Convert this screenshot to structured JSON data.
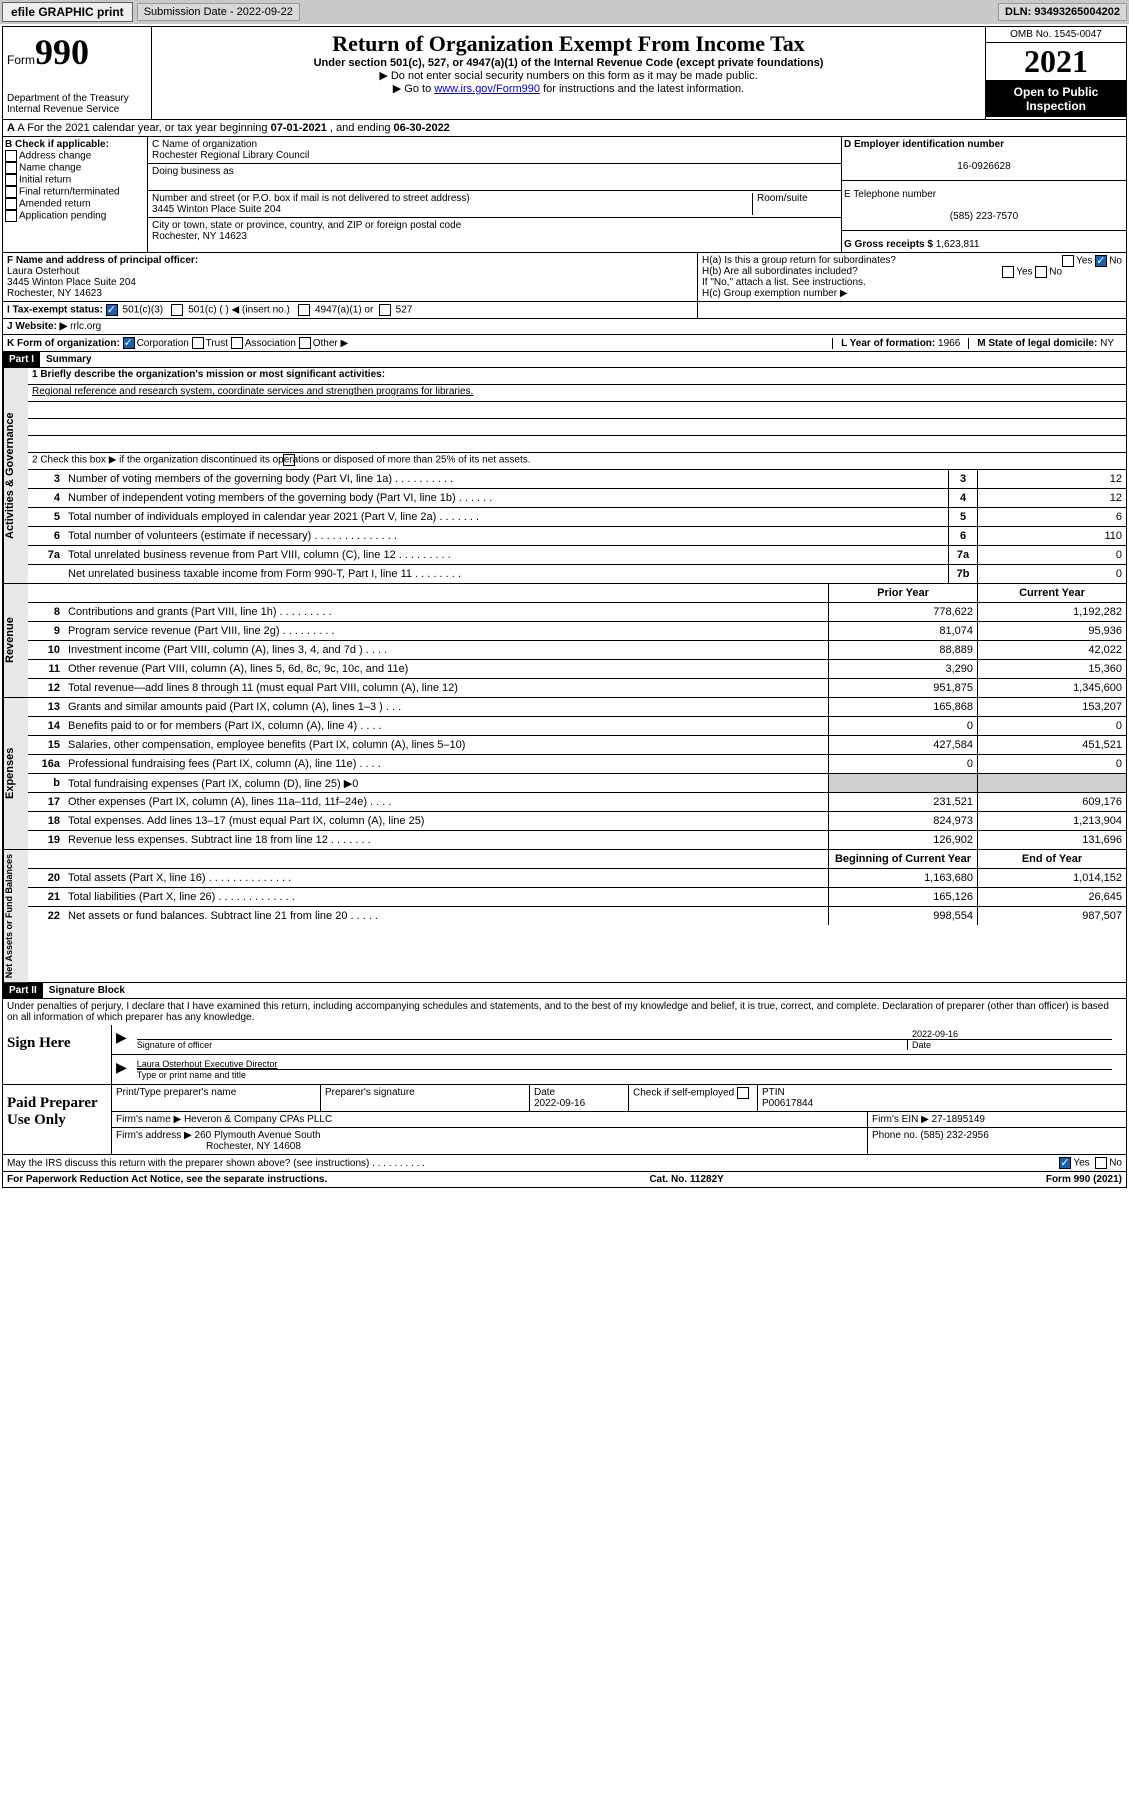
{
  "topbar": {
    "efile": "efile GRAPHIC print",
    "sub": "Submission Date - 2022-09-22",
    "dln": "DLN: 93493265004202"
  },
  "header": {
    "form_label": "Form",
    "form_num": "990",
    "dept": "Department of the Treasury\nInternal Revenue Service",
    "title": "Return of Organization Exempt From Income Tax",
    "sub1": "Under section 501(c), 527, or 4947(a)(1) of the Internal Revenue Code (except private foundations)",
    "sub2a": "▶ Do not enter social security numbers on this form as it may be made public.",
    "sub2b": "▶ Go to ",
    "sub2b_link": "www.irs.gov/Form990",
    "sub2b_after": " for instructions and the latest information.",
    "omb": "OMB No. 1545-0047",
    "year": "2021",
    "inspect": "Open to Public Inspection"
  },
  "rowA": {
    "text": "A For the 2021 calendar year, or tax year beginning ",
    "begin": "07-01-2021",
    "mid": " , and ending ",
    "end": "06-30-2022"
  },
  "colB": {
    "hdr": "B Check if applicable:",
    "items": [
      "Address change",
      "Name change",
      "Initial return",
      "Final return/terminated",
      "Amended return",
      "Application pending"
    ]
  },
  "colC": {
    "name_lbl": "C Name of organization",
    "name": "Rochester Regional Library Council",
    "dba_lbl": "Doing business as",
    "dba": "",
    "addr_lbl": "Number and street (or P.O. box if mail is not delivered to street address)",
    "room_lbl": "Room/suite",
    "addr": "3445 Winton Place Suite 204",
    "city_lbl": "City or town, state or province, country, and ZIP or foreign postal code",
    "city": "Rochester, NY  14623"
  },
  "colD": {
    "ein_lbl": "D Employer identification number",
    "ein": "16-0926628",
    "tel_lbl": "E Telephone number",
    "tel": "(585) 223-7570",
    "gross_lbl": "G Gross receipts $ ",
    "gross": "1,623,811"
  },
  "rowF": {
    "lbl": "F  Name and address of principal officer:",
    "name": "Laura Osterhout",
    "addr": "3445 Winton Place Suite 204\nRochester, NY  14623",
    "ha": "H(a)  Is this a group return for subordinates?",
    "ha_yes": "Yes",
    "ha_no": "No",
    "hb": "H(b)  Are all subordinates included?",
    "hb_yes": "Yes",
    "hb_no": "No",
    "hb_note": "If \"No,\" attach a list. See instructions.",
    "hc": "H(c)  Group exemption number ▶"
  },
  "rowI": {
    "lbl": "I  Tax-exempt status:",
    "o1": "501(c)(3)",
    "o2": "501(c) (   ) ◀ (insert no.)",
    "o3": "4947(a)(1) or",
    "o4": "527"
  },
  "rowJ": {
    "lbl": "J  Website: ▶",
    "val": "rrlc.org"
  },
  "rowK": {
    "lbl": "K Form of organization:",
    "o1": "Corporation",
    "o2": "Trust",
    "o3": "Association",
    "o4": "Other ▶",
    "l": "L Year of formation: ",
    "lval": "1966",
    "m": "M State of legal domicile: ",
    "mval": "NY"
  },
  "partI": {
    "hdr": "Part I",
    "title": "Summary"
  },
  "gov": {
    "label": "Activities & Governance",
    "l1": "1  Briefly describe the organization's mission or most significant activities:",
    "mission": "Regional reference and research system, coordinate services and strengthen programs for libraries.",
    "l2": "2  Check this box ▶       if the organization discontinued its operations or disposed of more than 25% of its net assets.",
    "rows": [
      {
        "n": "3",
        "t": "Number of voting members of the governing body (Part VI, line 1a)  .    .    .    .    .    .    .    .    .    .",
        "b": "3",
        "v": "12"
      },
      {
        "n": "4",
        "t": "Number of independent voting members of the governing body (Part VI, line 1b)  .    .    .    .    .    .",
        "b": "4",
        "v": "12"
      },
      {
        "n": "5",
        "t": "Total number of individuals employed in calendar year 2021 (Part V, line 2a)  .    .    .    .    .    .    .",
        "b": "5",
        "v": "6"
      },
      {
        "n": "6",
        "t": "Total number of volunteers (estimate if necessary)  .    .    .    .    .    .    .    .    .    .    .    .    .    .",
        "b": "6",
        "v": "110"
      },
      {
        "n": "7a",
        "t": "Total unrelated business revenue from Part VIII, column (C), line 12  .    .    .    .    .    .    .    .    .",
        "b": "7a",
        "v": "0"
      },
      {
        "n": "",
        "t": "Net unrelated business taxable income from Form 990-T, Part I, line 11  .    .    .    .    .    .    .    .",
        "b": "7b",
        "v": "0"
      }
    ]
  },
  "revenue": {
    "label": "Revenue",
    "hdr_prior": "Prior Year",
    "hdr_curr": "Current Year",
    "rows": [
      {
        "n": "8",
        "t": "Contributions and grants (Part VIII, line 1h)  .    .    .    .    .    .    .    .    .",
        "p": "778,622",
        "c": "1,192,282"
      },
      {
        "n": "9",
        "t": "Program service revenue (Part VIII, line 2g)  .    .    .    .    .    .    .    .    .",
        "p": "81,074",
        "c": "95,936"
      },
      {
        "n": "10",
        "t": "Investment income (Part VIII, column (A), lines 3, 4, and 7d )  .    .    .    .",
        "p": "88,889",
        "c": "42,022"
      },
      {
        "n": "11",
        "t": "Other revenue (Part VIII, column (A), lines 5, 6d, 8c, 9c, 10c, and 11e)",
        "p": "3,290",
        "c": "15,360"
      },
      {
        "n": "12",
        "t": "Total revenue—add lines 8 through 11 (must equal Part VIII, column (A), line 12)",
        "p": "951,875",
        "c": "1,345,600"
      }
    ]
  },
  "expenses": {
    "label": "Expenses",
    "rows": [
      {
        "n": "13",
        "t": "Grants and similar amounts paid (Part IX, column (A), lines 1–3 )  .    .    .",
        "p": "165,868",
        "c": "153,207"
      },
      {
        "n": "14",
        "t": "Benefits paid to or for members (Part IX, column (A), line 4)  .    .    .    .",
        "p": "0",
        "c": "0"
      },
      {
        "n": "15",
        "t": "Salaries, other compensation, employee benefits (Part IX, column (A), lines 5–10)",
        "p": "427,584",
        "c": "451,521"
      },
      {
        "n": "16a",
        "t": "Professional fundraising fees (Part IX, column (A), line 11e)  .    .    .    .",
        "p": "0",
        "c": "0"
      },
      {
        "n": "b",
        "t": "Total fundraising expenses (Part IX, column (D), line 25) ▶0",
        "p": "",
        "c": "",
        "shade": true
      },
      {
        "n": "17",
        "t": "Other expenses (Part IX, column (A), lines 11a–11d, 11f–24e)  .    .    .    .",
        "p": "231,521",
        "c": "609,176"
      },
      {
        "n": "18",
        "t": "Total expenses. Add lines 13–17 (must equal Part IX, column (A), line 25)",
        "p": "824,973",
        "c": "1,213,904"
      },
      {
        "n": "19",
        "t": "Revenue less expenses. Subtract line 18 from line 12  .    .    .    .    .    .    .",
        "p": "126,902",
        "c": "131,696"
      }
    ]
  },
  "net": {
    "label": "Net Assets or Fund Balances",
    "hdr_begin": "Beginning of Current Year",
    "hdr_end": "End of Year",
    "rows": [
      {
        "n": "20",
        "t": "Total assets (Part X, line 16)  .    .    .    .    .    .    .    .    .    .    .    .    .    .",
        "p": "1,163,680",
        "c": "1,014,152"
      },
      {
        "n": "21",
        "t": "Total liabilities (Part X, line 26)  .    .    .    .    .    .    .    .    .    .    .    .    .",
        "p": "165,126",
        "c": "26,645"
      },
      {
        "n": "22",
        "t": "Net assets or fund balances. Subtract line 21 from line 20  .    .    .    .    .",
        "p": "998,554",
        "c": "987,507"
      }
    ]
  },
  "partII": {
    "hdr": "Part II",
    "title": "Signature Block"
  },
  "declare": "Under penalties of perjury, I declare that I have examined this return, including accompanying schedules and statements, and to the best of my knowledge and belief, it is true, correct, and complete. Declaration of preparer (other than officer) is based on all information of which preparer has any knowledge.",
  "sign": {
    "left": "Sign Here",
    "sig_lbl": "Signature of officer",
    "date_lbl": "Date",
    "date": "2022-09-16",
    "name": "Laura Osterhout  Executive Director",
    "name_lbl": "Type or print name and title"
  },
  "paid": {
    "left": "Paid Preparer Use Only",
    "h1": "Print/Type preparer's name",
    "h2": "Preparer's signature",
    "h3": "Date",
    "h3v": "2022-09-16",
    "h4": "Check        if self-employed",
    "h5": "PTIN",
    "h5v": "P00617844",
    "firm_lbl": "Firm's name      ▶",
    "firm": "Heveron & Company CPAs PLLC",
    "ein_lbl": "Firm's EIN ▶",
    "ein": "27-1895149",
    "addr_lbl": "Firm's address ▶",
    "addr": "260 Plymouth Avenue South",
    "city": "Rochester, NY  14608",
    "phone_lbl": "Phone no. ",
    "phone": "(585) 232-2956"
  },
  "may": "May the IRS discuss this return with the preparer shown above? (see instructions)  .    .    .    .    .    .    .    .    .    .",
  "may_yes": "Yes",
  "may_no": "No",
  "footer": {
    "l": "For Paperwork Reduction Act Notice, see the separate instructions.",
    "m": "Cat. No. 11282Y",
    "r": "Form 990 (2021)"
  }
}
